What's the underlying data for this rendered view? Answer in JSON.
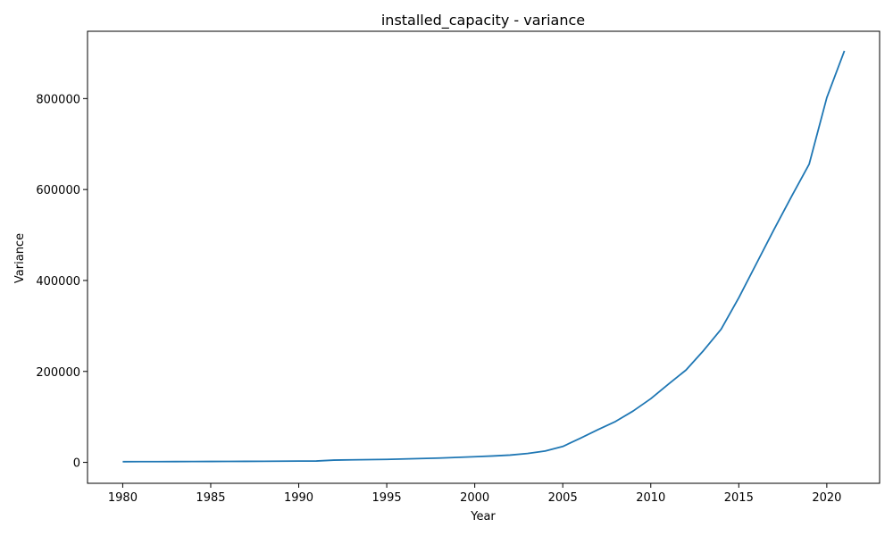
{
  "chart_data": {
    "type": "line",
    "title": "installed_capacity - variance",
    "xlabel": "Year",
    "ylabel": "Variance",
    "xlim": [
      1978,
      2023
    ],
    "ylim": [
      -46000,
      948000
    ],
    "x_ticks": [
      1980,
      1985,
      1990,
      1995,
      2000,
      2005,
      2010,
      2015,
      2020
    ],
    "y_ticks": [
      0,
      200000,
      400000,
      600000,
      800000
    ],
    "grid": false,
    "series": [
      {
        "color": "#1f77b4",
        "x": [
          1980,
          1981,
          1982,
          1983,
          1984,
          1985,
          1986,
          1987,
          1988,
          1989,
          1990,
          1991,
          1992,
          1993,
          1994,
          1995,
          1996,
          1997,
          1998,
          1999,
          2000,
          2001,
          2002,
          2003,
          2004,
          2005,
          2006,
          2007,
          2008,
          2009,
          2010,
          2011,
          2012,
          2013,
          2014,
          2015,
          2016,
          2017,
          2018,
          2019,
          2020,
          2021
        ],
        "y": [
          1500,
          1600,
          1700,
          1800,
          1900,
          2000,
          2100,
          2200,
          2400,
          2600,
          2800,
          3000,
          5000,
          5500,
          6000,
          6500,
          7500,
          8500,
          9500,
          11000,
          12500,
          14000,
          16000,
          19500,
          25000,
          35000,
          53000,
          72000,
          90000,
          113000,
          140000,
          172000,
          203000,
          246000,
          293000,
          362000,
          437000,
          512000,
          585000,
          656000,
          802000,
          905000
        ]
      }
    ]
  }
}
